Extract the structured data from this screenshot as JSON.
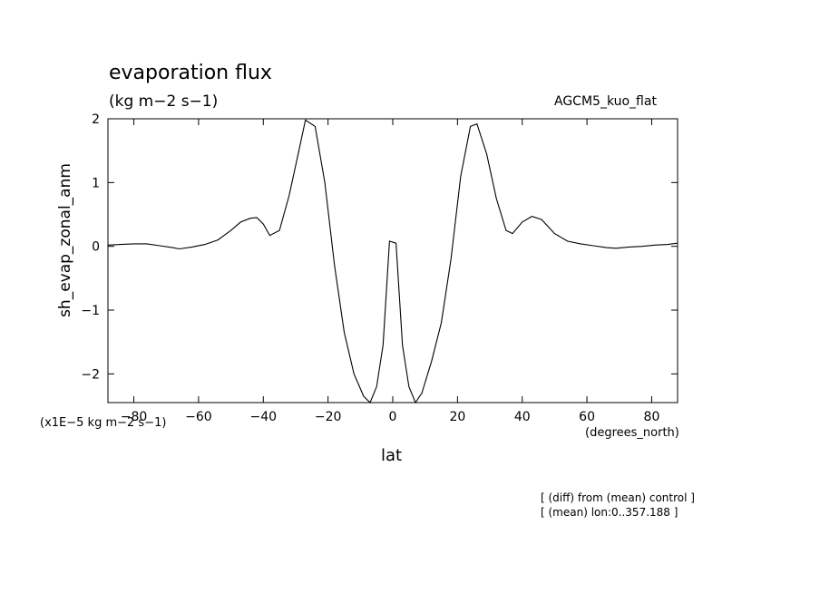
{
  "title": "evaporation flux",
  "units": "(kg m−2 s−1)",
  "model_label": "AGCM5_kuo_flat",
  "y_axis_label": "sh_evap_zonal_anm",
  "x_axis_label": "lat",
  "x_axis_units": "(degrees_north)",
  "scale_label": "(x1E−5 kg m−2 s−1)",
  "notes": [
    "[ (diff) from (mean) control ]",
    "[ (mean) lon:0..357.188 ]"
  ],
  "chart_data": {
    "type": "line",
    "title": "evaporation flux",
    "xlabel": "lat",
    "ylabel": "sh_evap_zonal_anm",
    "xlim": [
      -88,
      88
    ],
    "ylim": [
      -2.45,
      2
    ],
    "x_ticks": [
      -80,
      -60,
      -40,
      -20,
      0,
      20,
      40,
      60,
      80
    ],
    "x_tick_labels": [
      "−80",
      "−60",
      "−40",
      "−20",
      "0",
      "20",
      "40",
      "60",
      "80"
    ],
    "y_ticks": [
      -2,
      -1,
      0,
      1,
      2
    ],
    "y_tick_labels": [
      "−2",
      "−1",
      "0",
      "1",
      "2"
    ],
    "grid": false,
    "series": [
      {
        "x": [
          -88,
          -84,
          -80,
          -76,
          -72,
          -68,
          -66,
          -62,
          -58,
          -54,
          -50,
          -47,
          -44,
          -42,
          -40,
          -38,
          -35,
          -32,
          -29,
          -27,
          -24,
          -21,
          -18,
          -15,
          -12,
          -9,
          -7,
          -5,
          -3,
          -1,
          1,
          3,
          5,
          7,
          9,
          12,
          15,
          18,
          21,
          24,
          26,
          29,
          32,
          35,
          37,
          40,
          43,
          46,
          50,
          54,
          58,
          62,
          66,
          69,
          73,
          77,
          81,
          85,
          88
        ],
        "y": [
          0.02,
          0.03,
          0.04,
          0.04,
          0.01,
          -0.02,
          -0.04,
          -0.01,
          0.03,
          0.1,
          0.25,
          0.38,
          0.44,
          0.45,
          0.35,
          0.17,
          0.25,
          0.8,
          1.5,
          1.98,
          1.88,
          1.0,
          -0.3,
          -1.35,
          -2.0,
          -2.35,
          -2.45,
          -2.2,
          -1.55,
          0.08,
          0.05,
          -1.55,
          -2.2,
          -2.45,
          -2.3,
          -1.8,
          -1.2,
          -0.2,
          1.1,
          1.88,
          1.92,
          1.45,
          0.75,
          0.25,
          0.2,
          0.38,
          0.47,
          0.42,
          0.2,
          0.08,
          0.04,
          0.01,
          -0.02,
          -0.03,
          -0.01,
          0.0,
          0.02,
          0.03,
          0.05
        ]
      }
    ]
  }
}
